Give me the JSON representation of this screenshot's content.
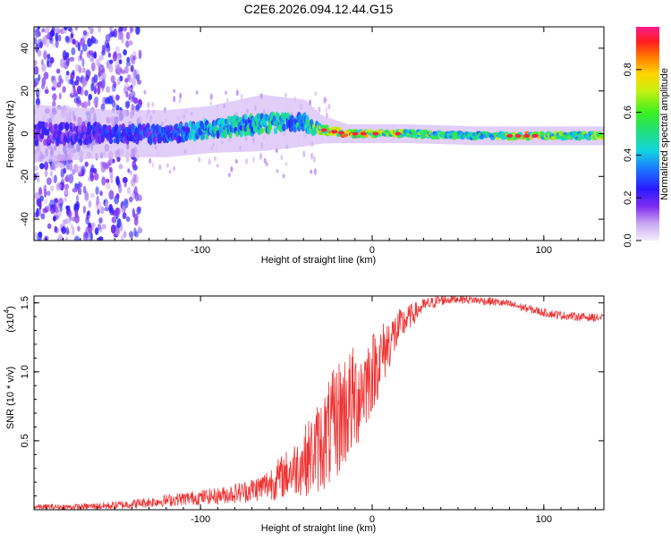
{
  "title": "C2E6.2026.094.12.44.G15",
  "colorbar": {
    "label": "Normalized spectral amplitude",
    "ticks": [
      "0.0",
      "0.2",
      "0.4",
      "0.6",
      "0.8"
    ],
    "tick_values": [
      0.0,
      0.2,
      0.4,
      0.6,
      0.8
    ],
    "range": [
      0,
      1
    ]
  },
  "chart_data": [
    {
      "type": "heatmap",
      "name": "spectrogram",
      "xlabel": "Height of straight line (km)",
      "ylabel": "Frequency (Hz)",
      "xlim": [
        -197,
        135
      ],
      "ylim": [
        -50,
        50
      ],
      "xticks": [
        -100,
        0,
        100
      ],
      "xtick_labels": [
        "-100",
        "0",
        "100"
      ],
      "yticks": [
        -40,
        -20,
        0,
        20,
        40
      ],
      "ytick_labels": [
        "-40",
        "-20",
        "0",
        "20",
        "40"
      ],
      "ridge": [
        {
          "x": -190,
          "center": 0,
          "halfwidth": 6,
          "amp": 0.25
        },
        {
          "x": -150,
          "center": 0,
          "halfwidth": 5,
          "amp": 0.3
        },
        {
          "x": -120,
          "center": 0,
          "halfwidth": 5,
          "amp": 0.35
        },
        {
          "x": -95,
          "center": 2,
          "halfwidth": 5,
          "amp": 0.5
        },
        {
          "x": -65,
          "center": 5,
          "halfwidth": 6,
          "amp": 0.55
        },
        {
          "x": -40,
          "center": 5,
          "halfwidth": 5,
          "amp": 0.5
        },
        {
          "x": -30,
          "center": 2,
          "halfwidth": 3,
          "amp": 0.8
        },
        {
          "x": -15,
          "center": 0,
          "halfwidth": 2,
          "amp": 0.9
        },
        {
          "x": 0,
          "center": 0,
          "halfwidth": 2,
          "amp": 0.85
        },
        {
          "x": 20,
          "center": 0,
          "halfwidth": 2,
          "amp": 0.7
        },
        {
          "x": 60,
          "center": -1,
          "halfwidth": 2,
          "amp": 0.55
        },
        {
          "x": 90,
          "center": -1,
          "halfwidth": 2,
          "amp": 0.85
        },
        {
          "x": 120,
          "center": -1,
          "halfwidth": 2,
          "amp": 0.6
        },
        {
          "x": 135,
          "center": -1,
          "halfwidth": 2,
          "amp": 0.75
        }
      ]
    },
    {
      "type": "line",
      "name": "snr",
      "xlabel": "Height of straight line (km)",
      "ylabel": "SNR (10 * v/v)",
      "y_scale_label": "(x10",
      "y_scale_exp": "4",
      "y_scale_close": ")",
      "xlim": [
        -197,
        135
      ],
      "ylim": [
        0,
        1.55
      ],
      "xticks": [
        -100,
        0,
        100
      ],
      "xtick_labels": [
        "-100",
        "0",
        "100"
      ],
      "yticks": [
        0.5,
        1.0,
        1.5
      ],
      "ytick_labels": [
        "0.5",
        "1.0",
        "1.5"
      ],
      "series": [
        {
          "name": "SNR",
          "color": "#ee3333",
          "x": [
            -197,
            -175,
            -150,
            -125,
            -110,
            -90,
            -75,
            -65,
            -55,
            -45,
            -35,
            -25,
            -18,
            -10,
            -5,
            0,
            5,
            10,
            20,
            30,
            40,
            50,
            60,
            70,
            80,
            90,
            100,
            110,
            120,
            135
          ],
          "y": [
            0.02,
            0.02,
            0.03,
            0.06,
            0.08,
            0.1,
            0.13,
            0.16,
            0.22,
            0.3,
            0.4,
            0.55,
            0.7,
            0.8,
            0.9,
            1.0,
            1.1,
            1.22,
            1.38,
            1.48,
            1.52,
            1.53,
            1.52,
            1.51,
            1.49,
            1.46,
            1.43,
            1.41,
            1.4,
            1.39
          ],
          "noise": [
            0.02,
            0.02,
            0.03,
            0.04,
            0.05,
            0.06,
            0.08,
            0.1,
            0.15,
            0.2,
            0.3,
            0.4,
            0.45,
            0.4,
            0.35,
            0.3,
            0.25,
            0.2,
            0.1,
            0.05,
            0.04,
            0.03,
            0.03,
            0.03,
            0.03,
            0.03,
            0.03,
            0.03,
            0.03,
            0.03
          ]
        }
      ]
    }
  ]
}
